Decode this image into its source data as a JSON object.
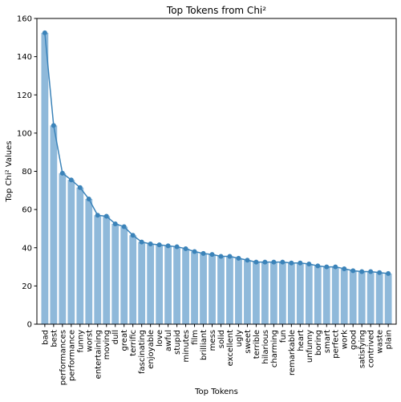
{
  "chart_data": {
    "type": "bar",
    "title": "Top Tokens from Chi²",
    "xlabel": "Top Tokens",
    "ylabel": "Top Chi² Values",
    "ylim": [
      0,
      160
    ],
    "yticks": [
      0,
      20,
      40,
      60,
      80,
      100,
      120,
      140,
      160
    ],
    "grid": false,
    "bar_color": "#8fb9da",
    "line_color": "#3b83b9",
    "categories": [
      "bad",
      "best",
      "performances",
      "performance",
      "funny",
      "worst",
      "entertaining",
      "moving",
      "dull",
      "great",
      "terrific",
      "fascinating",
      "enjoyable",
      "love",
      "awful",
      "stupid",
      "minutes",
      "film",
      "brilliant",
      "mess",
      "solid",
      "excellent",
      "ugly",
      "sweet",
      "terrible",
      "hilarious",
      "charming",
      "fun",
      "remarkable",
      "heart",
      "unfunny",
      "boring",
      "smart",
      "perfect",
      "work",
      "good",
      "satisfying",
      "contrived",
      "waste",
      "plain"
    ],
    "values": [
      152.5,
      104,
      79,
      75.5,
      71.5,
      65.5,
      57,
      56.5,
      52.5,
      51,
      46.5,
      43,
      42,
      41.5,
      41,
      40.5,
      39.5,
      38,
      37,
      36.5,
      35.5,
      35.5,
      34.5,
      33.5,
      32.5,
      32.5,
      32.5,
      32.5,
      32,
      32,
      31.5,
      30.5,
      30,
      30,
      29,
      28,
      27.5,
      27.5,
      27,
      26.5
    ]
  }
}
